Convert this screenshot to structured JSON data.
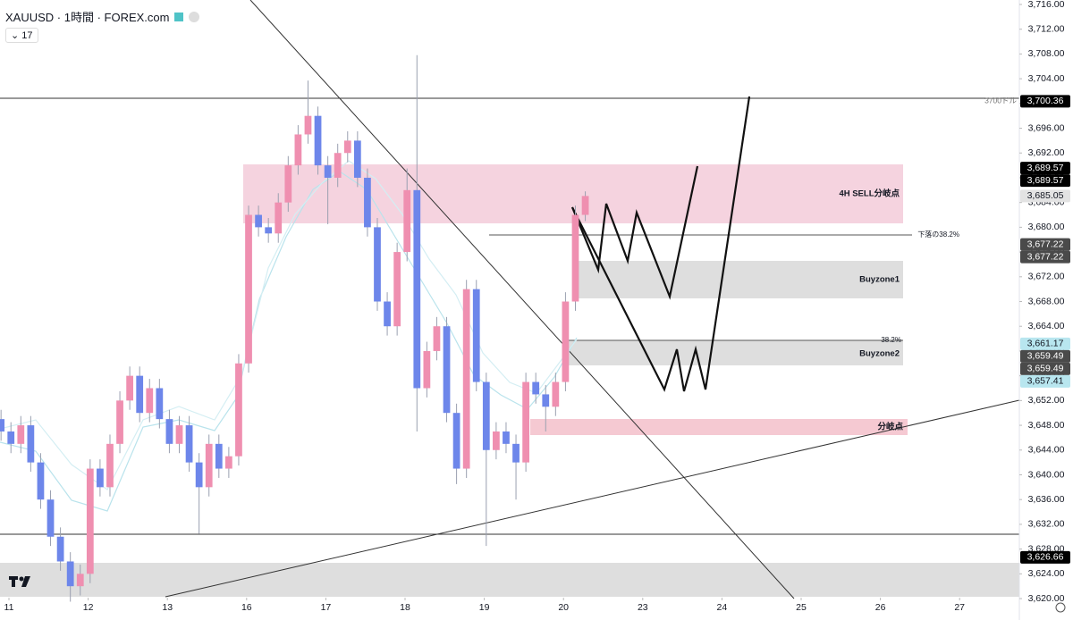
{
  "header": {
    "symbol": "XAUUSD · 1時間 · FOREX.com",
    "interval_badge": "17"
  },
  "annotations": {
    "sell_zone": "4H SELL分岐点",
    "buyzone1": "Buyzone1",
    "buyzone2": "Buyzone2",
    "pivot": "分岐点",
    "fib_line": "下落の38.2%",
    "fib_short": "38.2%"
  },
  "chart_data": {
    "type": "candlestick",
    "up_color": "#ef8fb0",
    "down_color": "#6d86ea",
    "wick_color": "#9aa0b0",
    "grid": false,
    "xlim": [
      -0.113,
      12.754
    ],
    "ylim": [
      3616.54,
      3716.72
    ],
    "xticks": [
      {
        "value": 0,
        "label": "11"
      },
      {
        "value": 1,
        "label": "12"
      },
      {
        "value": 2,
        "label": "13"
      },
      {
        "value": 3,
        "label": "16"
      },
      {
        "value": 4,
        "label": "17"
      },
      {
        "value": 5,
        "label": "18"
      },
      {
        "value": 6,
        "label": "19"
      },
      {
        "value": 7,
        "label": "20"
      },
      {
        "value": 8,
        "label": "23"
      },
      {
        "value": 9,
        "label": "24"
      },
      {
        "value": 10,
        "label": "25"
      },
      {
        "value": 11,
        "label": "26"
      },
      {
        "value": 12,
        "label": "27"
      }
    ],
    "yticks": [
      {
        "value": 3620,
        "label": "3,620.00"
      },
      {
        "value": 3624,
        "label": "3,624.00"
      },
      {
        "value": 3628,
        "label": "3,628.00"
      },
      {
        "value": 3632,
        "label": "3,632.00"
      },
      {
        "value": 3636,
        "label": "3,636.00"
      },
      {
        "value": 3640,
        "label": "3,640.00"
      },
      {
        "value": 3644,
        "label": "3,644.00"
      },
      {
        "value": 3648,
        "label": "3,648.00"
      },
      {
        "value": 3652,
        "label": "3,652.00"
      },
      {
        "value": 3656,
        "label": "3,656.00"
      },
      {
        "value": 3660,
        "label": "3,660.00"
      },
      {
        "value": 3664,
        "label": "3,664.00"
      },
      {
        "value": 3668,
        "label": "3,668.00"
      },
      {
        "value": 3672,
        "label": "3,672.00"
      },
      {
        "value": 3676,
        "label": "3,676.00"
      },
      {
        "value": 3680,
        "label": "3,680.00"
      },
      {
        "value": 3684,
        "label": "3,684.00"
      },
      {
        "value": 3688,
        "label": "3,688.00"
      },
      {
        "value": 3692,
        "label": "3,692.00"
      },
      {
        "value": 3696,
        "label": "3,696.00"
      },
      {
        "value": 3700,
        "label": "3,700.00"
      },
      {
        "value": 3704,
        "label": "3,704.00"
      },
      {
        "value": 3708,
        "label": "3,708.00"
      },
      {
        "value": 3712,
        "label": "3,712.00"
      },
      {
        "value": 3716,
        "label": "3,716.00"
      }
    ],
    "x": [
      -0.1,
      0.025,
      0.15,
      0.275,
      0.4,
      0.525,
      0.65,
      0.775,
      0.9,
      1.025,
      1.15,
      1.275,
      1.4,
      1.525,
      1.65,
      1.775,
      1.9,
      2.025,
      2.15,
      2.275,
      2.4,
      2.525,
      2.65,
      2.775,
      2.9,
      3.025,
      3.15,
      3.275,
      3.4,
      3.525,
      3.65,
      3.775,
      3.9,
      4.025,
      4.15,
      4.275,
      4.4,
      4.525,
      4.65,
      4.775,
      4.9,
      5.025,
      5.15,
      5.275,
      5.4,
      5.525,
      5.65,
      5.775,
      5.9,
      6.025,
      6.15,
      6.275,
      6.4,
      6.525,
      6.65,
      6.775,
      6.9,
      7.025,
      7.15,
      7.275
    ],
    "open": [
      3649,
      3647,
      3645,
      3648,
      3642,
      3636,
      3630,
      3626,
      3622,
      3624,
      3641,
      3638,
      3645,
      3652,
      3656,
      3650,
      3654,
      3649,
      3645,
      3648,
      3642,
      3638,
      3645,
      3641,
      3643,
      3658,
      3682,
      3680,
      3679,
      3684,
      3690,
      3695,
      3698,
      3690,
      3688,
      3692,
      3694,
      3688,
      3680,
      3668,
      3664,
      3676,
      3686,
      3654,
      3660,
      3664,
      3650,
      3641,
      3670,
      3655,
      3644,
      3647,
      3645,
      3642,
      3655,
      3653,
      3651,
      3655,
      3668,
      3682
    ],
    "high": [
      3650.5,
      3648.5,
      3649.5,
      3649.5,
      3643.5,
      3637.5,
      3631.5,
      3627.5,
      3625.5,
      3642.5,
      3642.5,
      3646.5,
      3653.5,
      3657.5,
      3657.5,
      3655.5,
      3655.5,
      3650.5,
      3649.5,
      3649.5,
      3643.5,
      3646.5,
      3646.5,
      3644.5,
      3659.5,
      3683.5,
      3683.5,
      3681.5,
      3685.5,
      3691.5,
      3696.5,
      3703.7,
      3699.5,
      3691.5,
      3693.5,
      3695.5,
      3695.5,
      3689.5,
      3681.5,
      3669.5,
      3677.5,
      3689.5,
      3707.8,
      3661.5,
      3665.5,
      3665.5,
      3651.5,
      3671.5,
      3671.5,
      3656.5,
      3648.5,
      3648.5,
      3646.5,
      3656.5,
      3656.5,
      3654.5,
      3656.5,
      3669.5,
      3683.5,
      3685.8
    ],
    "low": [
      3645.5,
      3643.5,
      3643.5,
      3640.5,
      3634.5,
      3628.5,
      3624.5,
      3619.5,
      3620.5,
      3622.5,
      3636.5,
      3636.5,
      3643.5,
      3650.5,
      3648.5,
      3648.5,
      3647.5,
      3643.5,
      3643.5,
      3640.5,
      3630.5,
      3636.5,
      3639.5,
      3639.5,
      3641.5,
      3656.5,
      3678.5,
      3677.5,
      3677.5,
      3682.5,
      3688.5,
      3693.5,
      3688.5,
      3680.5,
      3686.5,
      3690.5,
      3686.5,
      3678.5,
      3666.5,
      3662.5,
      3662.5,
      3674.5,
      3647,
      3652.5,
      3658.5,
      3648.5,
      3638.5,
      3639.5,
      3653.5,
      3628.5,
      3642.5,
      3643.5,
      3636,
      3640.5,
      3651.5,
      3647,
      3649.5,
      3653.5,
      3666.5,
      3681
    ],
    "close": [
      3647,
      3645,
      3648,
      3642,
      3636,
      3630,
      3626,
      3622,
      3624,
      3641,
      3638,
      3645,
      3652,
      3656,
      3650,
      3654,
      3649,
      3645,
      3648,
      3642,
      3638,
      3645,
      3641,
      3643,
      3658,
      3682,
      3680,
      3679,
      3684,
      3690,
      3695,
      3698,
      3690,
      3688,
      3692,
      3694,
      3688,
      3680,
      3668,
      3664,
      3676,
      3686,
      3654,
      3660,
      3664,
      3650,
      3641,
      3670,
      3655,
      3644,
      3647,
      3645,
      3642,
      3655,
      3653,
      3651,
      3655,
      3668,
      3682,
      3685.05
    ],
    "price_tags": [
      {
        "value": 3700.36,
        "label": "3,700.36",
        "note": "3700ドル",
        "bg": "#000000",
        "fg": "#ffffff"
      },
      {
        "value": 3689.57,
        "label": "3,689.57",
        "bg": "#000000",
        "fg": "#ffffff"
      },
      {
        "value": 3689.57,
        "label": "3,689.57",
        "bg": "#000000",
        "fg": "#ffffff"
      },
      {
        "value": 3685.05,
        "label": "3,685.05",
        "bg": "#e3e3e3",
        "fg": "#131722"
      },
      {
        "value": 3677.22,
        "label": "3,677.22",
        "bg": "#4a4a4a",
        "fg": "#ffffff"
      },
      {
        "value": 3677.22,
        "label": "3,677.22",
        "bg": "#4a4a4a",
        "fg": "#ffffff"
      },
      {
        "value": 3661.17,
        "label": "3,661.17",
        "bg": "#b8e6ef",
        "fg": "#131722"
      },
      {
        "value": 3659.49,
        "label": "3,659.49",
        "bg": "#4a4a4a",
        "fg": "#ffffff"
      },
      {
        "value": 3659.49,
        "label": "3,659.49",
        "bg": "#4a4a4a",
        "fg": "#ffffff"
      },
      {
        "value": 3657.41,
        "label": "3,657.41",
        "bg": "#b8e6ef",
        "fg": "#131722"
      },
      {
        "value": 3626.66,
        "label": "3,626.66",
        "bg": "#000000",
        "fg": "#ffffff"
      }
    ]
  }
}
